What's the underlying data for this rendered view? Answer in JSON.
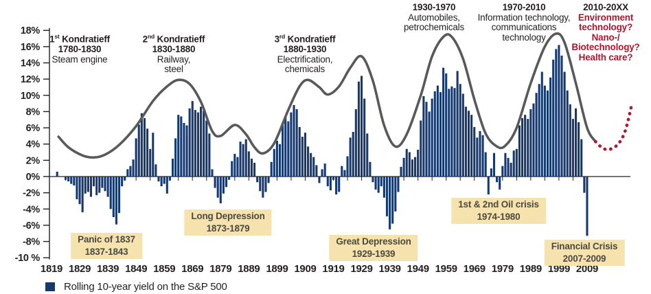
{
  "chart_data": {
    "type": "bar",
    "ylim": [
      -10,
      18
    ],
    "xlim": [
      1819,
      2026
    ],
    "grid": false,
    "legend_position": "bottom-left",
    "y_axis": {
      "tick_values": [
        18,
        16,
        14,
        12,
        10,
        8,
        6,
        4,
        2,
        0,
        -2,
        -4,
        -6,
        -8,
        -10
      ],
      "tick_labels": [
        "18%",
        "16%",
        "14%",
        "12%",
        "10%",
        "8%",
        "6%",
        "4%",
        "2%",
        "0%",
        "-2%",
        "-4%",
        "-6%",
        "-8%",
        "-10 %"
      ]
    },
    "x_axis": {
      "tick_labels": [
        "1819",
        "1829",
        "1839",
        "1849",
        "1859",
        "1869",
        "1879",
        "1889",
        "1899",
        "1909",
        "1919",
        "1929",
        "1939",
        "1949",
        "1959",
        "1969",
        "1979",
        "1989",
        "1999",
        "2009"
      ],
      "tick_values": [
        1819,
        1829,
        1839,
        1849,
        1859,
        1869,
        1879,
        1889,
        1899,
        1909,
        1919,
        1929,
        1939,
        1949,
        1959,
        1969,
        1979,
        1989,
        1999,
        2009
      ],
      "minor_tick_start": 1824,
      "minor_tick_step": 5,
      "minor_tick_end": 2009
    },
    "series": [
      {
        "name": "Rolling 10-year yield on the S&P 500",
        "type": "bar",
        "color": "#163a70",
        "points": [
          [
            1821,
            0.6
          ],
          [
            1824,
            -0.4
          ],
          [
            1825,
            -0.6
          ],
          [
            1826,
            -0.9
          ],
          [
            1827,
            -1.1
          ],
          [
            1828,
            -2.8
          ],
          [
            1829,
            -3.4
          ],
          [
            1830,
            -4.4
          ],
          [
            1831,
            -2.1
          ],
          [
            1832,
            -1.9
          ],
          [
            1833,
            -2.5
          ],
          [
            1834,
            -1.2
          ],
          [
            1835,
            -2.3
          ],
          [
            1836,
            -2.0
          ],
          [
            1837,
            -1.4
          ],
          [
            1838,
            -1.8
          ],
          [
            1839,
            -2.5
          ],
          [
            1840,
            -4.0
          ],
          [
            1841,
            -5.0
          ],
          [
            1842,
            -5.9
          ],
          [
            1843,
            -4.5
          ],
          [
            1844,
            -1.2
          ],
          [
            1845,
            -0.5
          ],
          [
            1846,
            0.9
          ],
          [
            1847,
            1.3
          ],
          [
            1848,
            2.1
          ],
          [
            1849,
            4.7
          ],
          [
            1850,
            6.4
          ],
          [
            1851,
            7.8
          ],
          [
            1852,
            7.2
          ],
          [
            1853,
            5.9
          ],
          [
            1854,
            3.4
          ],
          [
            1855,
            5.4
          ],
          [
            1856,
            1.5
          ],
          [
            1857,
            -0.6
          ],
          [
            1858,
            -1.2
          ],
          [
            1859,
            -0.9
          ],
          [
            1860,
            -2.1
          ],
          [
            1861,
            -0.5
          ],
          [
            1862,
            2.2
          ],
          [
            1863,
            4.7
          ],
          [
            1864,
            7.6
          ],
          [
            1865,
            7.4
          ],
          [
            1866,
            6.6
          ],
          [
            1867,
            6.3
          ],
          [
            1868,
            8.4
          ],
          [
            1869,
            9.3
          ],
          [
            1870,
            8.2
          ],
          [
            1871,
            7.9
          ],
          [
            1872,
            8.6
          ],
          [
            1873,
            8.1
          ],
          [
            1874,
            6.9
          ],
          [
            1875,
            5.3
          ],
          [
            1876,
            0.9
          ],
          [
            1877,
            -1.4
          ],
          [
            1878,
            -2.6
          ],
          [
            1879,
            -3.3
          ],
          [
            1880,
            -2.1
          ],
          [
            1881,
            -1.3
          ],
          [
            1882,
            -0.4
          ],
          [
            1883,
            1.9
          ],
          [
            1884,
            2.8
          ],
          [
            1885,
            2.4
          ],
          [
            1886,
            4.3
          ],
          [
            1887,
            4.0
          ],
          [
            1888,
            4.6
          ],
          [
            1889,
            3.1
          ],
          [
            1890,
            2.2
          ],
          [
            1891,
            1.7
          ],
          [
            1892,
            -0.7
          ],
          [
            1893,
            -1.8
          ],
          [
            1894,
            -2.6
          ],
          [
            1895,
            -1.9
          ],
          [
            1896,
            -0.8
          ],
          [
            1897,
            1.8
          ],
          [
            1898,
            3.4
          ],
          [
            1899,
            4.4
          ],
          [
            1900,
            4.0
          ],
          [
            1901,
            6.4
          ],
          [
            1902,
            7.4
          ],
          [
            1903,
            6.8
          ],
          [
            1904,
            7.9
          ],
          [
            1905,
            8.8
          ],
          [
            1906,
            8.3
          ],
          [
            1907,
            6.1
          ],
          [
            1908,
            4.9
          ],
          [
            1909,
            5.4
          ],
          [
            1910,
            3.7
          ],
          [
            1911,
            2.9
          ],
          [
            1912,
            2.4
          ],
          [
            1913,
            1.4
          ],
          [
            1914,
            -0.8
          ],
          [
            1915,
            0.9
          ],
          [
            1916,
            1.6
          ],
          [
            1917,
            -1.2
          ],
          [
            1918,
            -1.7
          ],
          [
            1919,
            -0.4
          ],
          [
            1920,
            -2.2
          ],
          [
            1921,
            -1.9
          ],
          [
            1922,
            1.3
          ],
          [
            1923,
            0.8
          ],
          [
            1924,
            2.5
          ],
          [
            1925,
            4.8
          ],
          [
            1926,
            5.5
          ],
          [
            1927,
            8.3
          ],
          [
            1928,
            11.7
          ],
          [
            1929,
            12.4
          ],
          [
            1930,
            9.6
          ],
          [
            1931,
            5.3
          ],
          [
            1932,
            1.8
          ],
          [
            1933,
            -0.7
          ],
          [
            1934,
            -1.6
          ],
          [
            1935,
            -2.0
          ],
          [
            1936,
            -1.2
          ],
          [
            1937,
            -2.6
          ],
          [
            1938,
            -4.9
          ],
          [
            1939,
            -6.5
          ],
          [
            1940,
            -5.8
          ],
          [
            1941,
            -4.3
          ],
          [
            1942,
            -1.9
          ],
          [
            1943,
            1.2
          ],
          [
            1944,
            2.3
          ],
          [
            1945,
            3.4
          ],
          [
            1946,
            3.0
          ],
          [
            1947,
            2.1
          ],
          [
            1948,
            2.4
          ],
          [
            1949,
            3.3
          ],
          [
            1950,
            6.9
          ],
          [
            1951,
            9.9
          ],
          [
            1952,
            9.2
          ],
          [
            1953,
            8.0
          ],
          [
            1954,
            9.6
          ],
          [
            1955,
            10.5
          ],
          [
            1956,
            11.2
          ],
          [
            1957,
            10.4
          ],
          [
            1958,
            13.4
          ],
          [
            1959,
            12.7
          ],
          [
            1960,
            10.8
          ],
          [
            1961,
            11.1
          ],
          [
            1962,
            10.9
          ],
          [
            1963,
            13.0
          ],
          [
            1964,
            11.4
          ],
          [
            1965,
            10.2
          ],
          [
            1966,
            8.6
          ],
          [
            1967,
            8.1
          ],
          [
            1968,
            7.6
          ],
          [
            1969,
            6.1
          ],
          [
            1970,
            4.8
          ],
          [
            1971,
            5.6
          ],
          [
            1972,
            5.1
          ],
          [
            1973,
            3.0
          ],
          [
            1974,
            -2.2
          ],
          [
            1975,
            1.0
          ],
          [
            1976,
            2.9
          ],
          [
            1977,
            -0.7
          ],
          [
            1978,
            -1.6
          ],
          [
            1979,
            1.3
          ],
          [
            1980,
            2.9
          ],
          [
            1981,
            2.3
          ],
          [
            1982,
            1.7
          ],
          [
            1983,
            3.2
          ],
          [
            1984,
            3.4
          ],
          [
            1985,
            6.3
          ],
          [
            1986,
            7.2
          ],
          [
            1987,
            7.6
          ],
          [
            1988,
            7.1
          ],
          [
            1989,
            8.3
          ],
          [
            1990,
            9.0
          ],
          [
            1991,
            10.3
          ],
          [
            1992,
            11.4
          ],
          [
            1993,
            12.9
          ],
          [
            1994,
            11.2
          ],
          [
            1995,
            10.6
          ],
          [
            1996,
            12.2
          ],
          [
            1997,
            14.4
          ],
          [
            1998,
            15.7
          ],
          [
            1999,
            16.2
          ],
          [
            2000,
            14.9
          ],
          [
            2001,
            12.9
          ],
          [
            2002,
            10.6
          ],
          [
            2003,
            8.9
          ],
          [
            2004,
            7.1
          ],
          [
            2005,
            8.4
          ],
          [
            2006,
            6.7
          ],
          [
            2007,
            4.6
          ],
          [
            2008,
            -2.0
          ],
          [
            2009,
            -7.3
          ]
        ]
      },
      {
        "name": "Kondratieff wave",
        "type": "line",
        "color": "#58595b",
        "points": [
          [
            1821.5,
            4.9
          ],
          [
            1825,
            3.6
          ],
          [
            1830,
            2.6
          ],
          [
            1834,
            2.35
          ],
          [
            1838,
            2.7
          ],
          [
            1843,
            3.9
          ],
          [
            1849,
            6.2
          ],
          [
            1855,
            9.3
          ],
          [
            1860,
            11.1
          ],
          [
            1864,
            11.9
          ],
          [
            1868,
            11.4
          ],
          [
            1872,
            9.2
          ],
          [
            1876,
            5.6
          ],
          [
            1879,
            5.0
          ],
          [
            1884,
            6.35
          ],
          [
            1888,
            5.2
          ],
          [
            1891,
            3.6
          ],
          [
            1894,
            2.85
          ],
          [
            1898,
            4.1
          ],
          [
            1903,
            8.2
          ],
          [
            1907,
            11.1
          ],
          [
            1910,
            11.9
          ],
          [
            1914,
            11.0
          ],
          [
            1917,
            10.1
          ],
          [
            1921,
            11.1
          ],
          [
            1925,
            13.4
          ],
          [
            1929,
            14.8
          ],
          [
            1933,
            11.8
          ],
          [
            1937,
            6.3
          ],
          [
            1941,
            3.7
          ],
          [
            1945,
            5.2
          ],
          [
            1950,
            10.0
          ],
          [
            1954,
            14.8
          ],
          [
            1958,
            17.2
          ],
          [
            1961,
            17.2
          ],
          [
            1965,
            14.5
          ],
          [
            1969,
            9.5
          ],
          [
            1973,
            5.3
          ],
          [
            1977,
            3.7
          ],
          [
            1980,
            3.8
          ],
          [
            1984,
            6.0
          ],
          [
            1989,
            11.5
          ],
          [
            1994,
            16.0
          ],
          [
            1998,
            17.6
          ],
          [
            2001,
            16.5
          ],
          [
            2005,
            11.5
          ],
          [
            2009,
            6.0
          ],
          [
            2012,
            4.3
          ]
        ]
      },
      {
        "name": "Projected 6th wave",
        "type": "line",
        "style": "dashed",
        "color": "#b2152f",
        "points": [
          [
            2012,
            4.3
          ],
          [
            2014.5,
            3.5
          ],
          [
            2017,
            3.35
          ],
          [
            2020,
            4.0
          ],
          [
            2022.5,
            5.6
          ],
          [
            2024.8,
            8.8
          ]
        ]
      }
    ]
  },
  "waves": [
    {
      "ord": "1",
      "sup": "st",
      "name": " Kondratieff",
      "years": "1780-1830",
      "tech": [
        "Steam engine"
      ]
    },
    {
      "ord": "2",
      "sup": "nd",
      "name": " Kondratieff",
      "years": "1830-1880",
      "tech": [
        "Railway,",
        "steel"
      ]
    },
    {
      "ord": "3",
      "sup": "rd",
      "name": " Kondratieff",
      "years": "1880-1930",
      "tech": [
        "Electrification,",
        "chemicals"
      ]
    },
    {
      "years": "1930-1970",
      "tech": [
        "Automobiles,",
        "petrochemicals"
      ]
    },
    {
      "years": "1970-2010",
      "tech": [
        "Information technology,",
        "communications",
        "technology"
      ]
    },
    {
      "years": "2010-20XX",
      "tech_red": [
        "Environment",
        "technology?",
        "Nano-/",
        "Biotechnology?",
        "Health care?"
      ]
    }
  ],
  "crises": [
    {
      "name": "Panic of 1837",
      "years": "1837-1843"
    },
    {
      "name": "Long Depression",
      "years": "1873-1879"
    },
    {
      "name": "Great Depression",
      "years": "1929-1939"
    },
    {
      "name": "1st & 2nd Oil crisis",
      "years": "1974-1980"
    },
    {
      "name": "Financial Crisis",
      "years": "2007-2009"
    }
  ],
  "legend": {
    "label": "Rolling 10-year yield on the S&P 500"
  },
  "colors": {
    "bar": "#163a70",
    "wave": "#58595b",
    "future": "#b2152f",
    "crisis_box": "#f6e2ac",
    "axis_text": "#231f20"
  }
}
